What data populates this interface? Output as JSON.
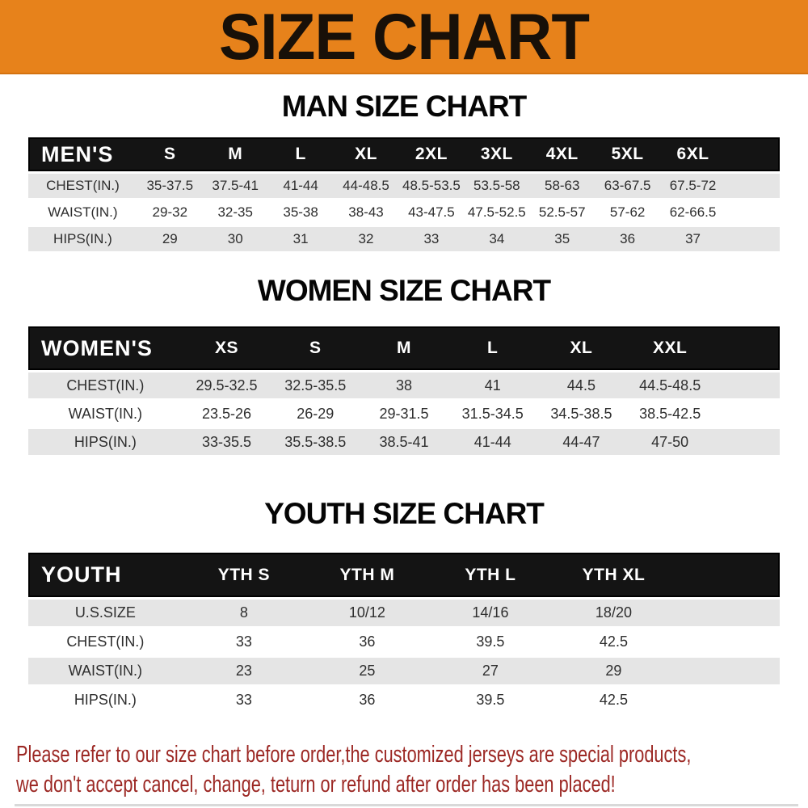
{
  "banner": {
    "title": "SIZE CHART"
  },
  "colors": {
    "banner_bg": "#e7821b",
    "table_header_bg": "#141414",
    "table_header_text": "#ffffff",
    "row_stripe": "#e5e5e5",
    "body_text": "#2e2e2e",
    "footer_text": "#9c2824"
  },
  "sections": [
    {
      "id": "men",
      "heading": "MAN SIZE CHART",
      "header": {
        "label": "MEN'S",
        "columns": [
          "S",
          "M",
          "L",
          "XL",
          "2XL",
          "3XL",
          "4XL",
          "5XL",
          "6XL"
        ]
      },
      "rows": [
        {
          "label": "CHEST(IN.)",
          "values": [
            "35-37.5",
            "37.5-41",
            "41-44",
            "44-48.5",
            "48.5-53.5",
            "53.5-58",
            "58-63",
            "63-67.5",
            "67.5-72"
          ]
        },
        {
          "label": "WAIST(IN.)",
          "values": [
            "29-32",
            "32-35",
            "35-38",
            "38-43",
            "43-47.5",
            "47.5-52.5",
            "52.5-57",
            "57-62",
            "62-66.5"
          ]
        },
        {
          "label": "HIPS(IN.)",
          "values": [
            "29",
            "30",
            "31",
            "32",
            "33",
            "34",
            "35",
            "36",
            "37"
          ]
        }
      ]
    },
    {
      "id": "women",
      "heading": "WOMEN SIZE CHART",
      "header": {
        "label": "WOMEN'S",
        "columns": [
          "XS",
          "S",
          "M",
          "L",
          "XL",
          "XXL"
        ]
      },
      "rows": [
        {
          "label": "CHEST(IN.)",
          "values": [
            "29.5-32.5",
            "32.5-35.5",
            "38",
            "41",
            "44.5",
            "44.5-48.5"
          ]
        },
        {
          "label": "WAIST(IN.)",
          "values": [
            "23.5-26",
            "26-29",
            "29-31.5",
            "31.5-34.5",
            "34.5-38.5",
            "38.5-42.5"
          ]
        },
        {
          "label": "HIPS(IN.)",
          "values": [
            "33-35.5",
            "35.5-38.5",
            "38.5-41",
            "41-44",
            "44-47",
            "47-50"
          ]
        }
      ]
    },
    {
      "id": "youth",
      "heading": "YOUTH SIZE CHART",
      "header": {
        "label": "YOUTH",
        "columns": [
          "YTH S",
          "YTH M",
          "YTH L",
          "YTH XL"
        ]
      },
      "rows": [
        {
          "label": "U.S.SIZE",
          "values": [
            "8",
            "10/12",
            "14/16",
            "18/20"
          ]
        },
        {
          "label": "CHEST(IN.)",
          "values": [
            "33",
            "36",
            "39.5",
            "42.5"
          ]
        },
        {
          "label": "WAIST(IN.)",
          "values": [
            "23",
            "25",
            "27",
            "29"
          ]
        },
        {
          "label": "HIPS(IN.)",
          "values": [
            "33",
            "36",
            "39.5",
            "42.5"
          ]
        }
      ]
    }
  ],
  "footer": {
    "lines": [
      "Please refer to our size chart before order,the customized jerseys are special products,",
      "we don't accept cancel, change, teturn or refund after order has been placed!"
    ]
  }
}
